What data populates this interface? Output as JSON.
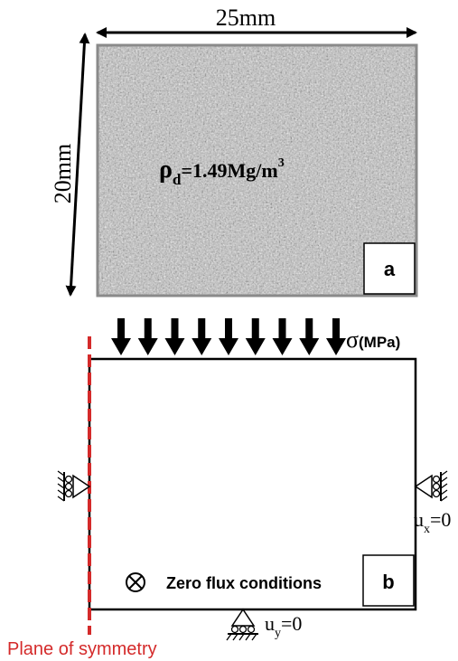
{
  "panel_a": {
    "width_label": "25mm",
    "height_label": "20mm",
    "density_symbol": "ρ",
    "density_subscript": "d",
    "density_value": "=1.49Mg/m",
    "density_exponent": "3",
    "label": "a",
    "texture_color": "#b5b5b5"
  },
  "panel_b": {
    "stress_symbol": "σ",
    "stress_unit": "(MPa)",
    "label": "b",
    "flux_text": "Zero flux conditions",
    "ux_main": "u",
    "ux_sub": "x",
    "ux_value": "=0",
    "uy_main": "u",
    "uy_sub": "y",
    "uy_value": "=0",
    "symmetry_label": "Plane of symmetry",
    "symmetry_color": "#d42a2a",
    "load_arrow_count": 9
  }
}
